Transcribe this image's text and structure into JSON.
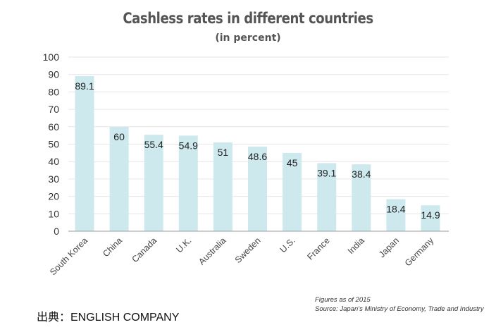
{
  "chart_data": {
    "type": "bar",
    "title": "Cashless rates in different countries",
    "subtitle": "(in percent)",
    "categories": [
      "South Korea",
      "China",
      "Canada",
      "U.K.",
      "Australia",
      "Sweden",
      "U.S.",
      "France",
      "India",
      "Japan",
      "Germany"
    ],
    "values": [
      89.1,
      60,
      55.4,
      54.9,
      51,
      48.6,
      45,
      39.1,
      38.4,
      18.4,
      14.9
    ],
    "value_labels": [
      "89.1",
      "60",
      "55.4",
      "54.9",
      "51",
      "48.6",
      "45",
      "39.1",
      "38.4",
      "18.4",
      "14.9"
    ],
    "y_ticks": [
      "0",
      "10",
      "20",
      "30",
      "40",
      "50",
      "60",
      "70",
      "80",
      "90",
      "100"
    ],
    "ylim": [
      0,
      100
    ],
    "xlabel": "",
    "ylabel": "",
    "grid": true,
    "bar_color": "#cde9ee",
    "grid_color": "#e6e6e6"
  },
  "notes": {
    "line1": "Figures as of 2015",
    "line2": "Source: Japan's Ministry of Economy, Trade and Industry"
  },
  "credit": "出典：ENGLISH COMPANY"
}
